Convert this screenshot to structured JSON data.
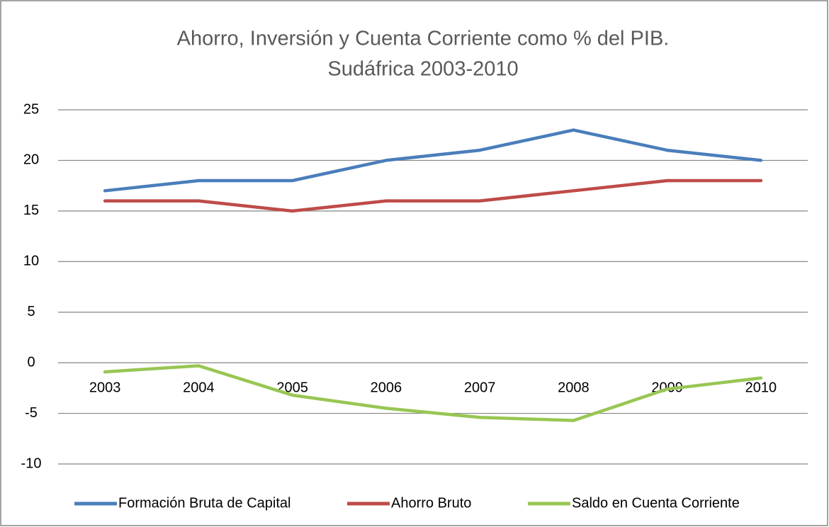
{
  "chart_data": {
    "type": "line",
    "title": [
      "Ahorro, Inversión y Cuenta Corriente como % del PIB.",
      "Sudáfrica 2003-2010"
    ],
    "categories": [
      "2003",
      "2004",
      "2005",
      "2006",
      "2007",
      "2008",
      "2009",
      "2010"
    ],
    "series": [
      {
        "name": "Formación Bruta de Capital",
        "color": "#4a7ebb",
        "values": [
          17,
          18,
          18,
          20,
          21,
          23,
          21,
          20
        ]
      },
      {
        "name": "Ahorro Bruto",
        "color": "#be4b48",
        "values": [
          16,
          16,
          15,
          16,
          16,
          17,
          18,
          18
        ]
      },
      {
        "name": "Saldo en Cuenta Corriente",
        "color": "#98c653",
        "values": [
          -0.9,
          -0.3,
          -3.2,
          -4.5,
          -5.4,
          -5.7,
          -2.6,
          -1.5
        ]
      }
    ],
    "ylim": [
      -10,
      25
    ],
    "yticks": [
      -10,
      -5,
      0,
      5,
      10,
      15,
      20,
      25
    ],
    "grid": true,
    "legend": "bottom"
  }
}
